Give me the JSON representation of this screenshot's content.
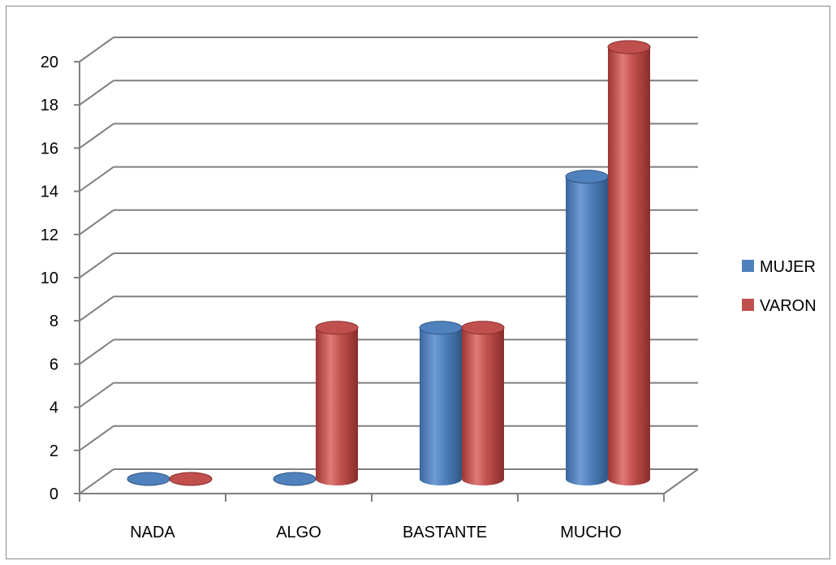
{
  "chart_data": {
    "type": "bar",
    "categories": [
      "NADA",
      "ALGO",
      "BASTANTE",
      "MUCHO"
    ],
    "series": [
      {
        "name": "MUJER",
        "values": [
          0,
          0,
          7,
          14
        ],
        "color": "#4f81bd"
      },
      {
        "name": "VARON",
        "values": [
          0,
          7,
          7,
          20
        ],
        "color": "#c0504d"
      }
    ],
    "ylim": [
      0,
      20
    ],
    "yticks": [
      0,
      2,
      4,
      6,
      8,
      10,
      12,
      14,
      16,
      18,
      20
    ],
    "grid": true,
    "legend_position": "right",
    "style": "3d-cylinder"
  }
}
